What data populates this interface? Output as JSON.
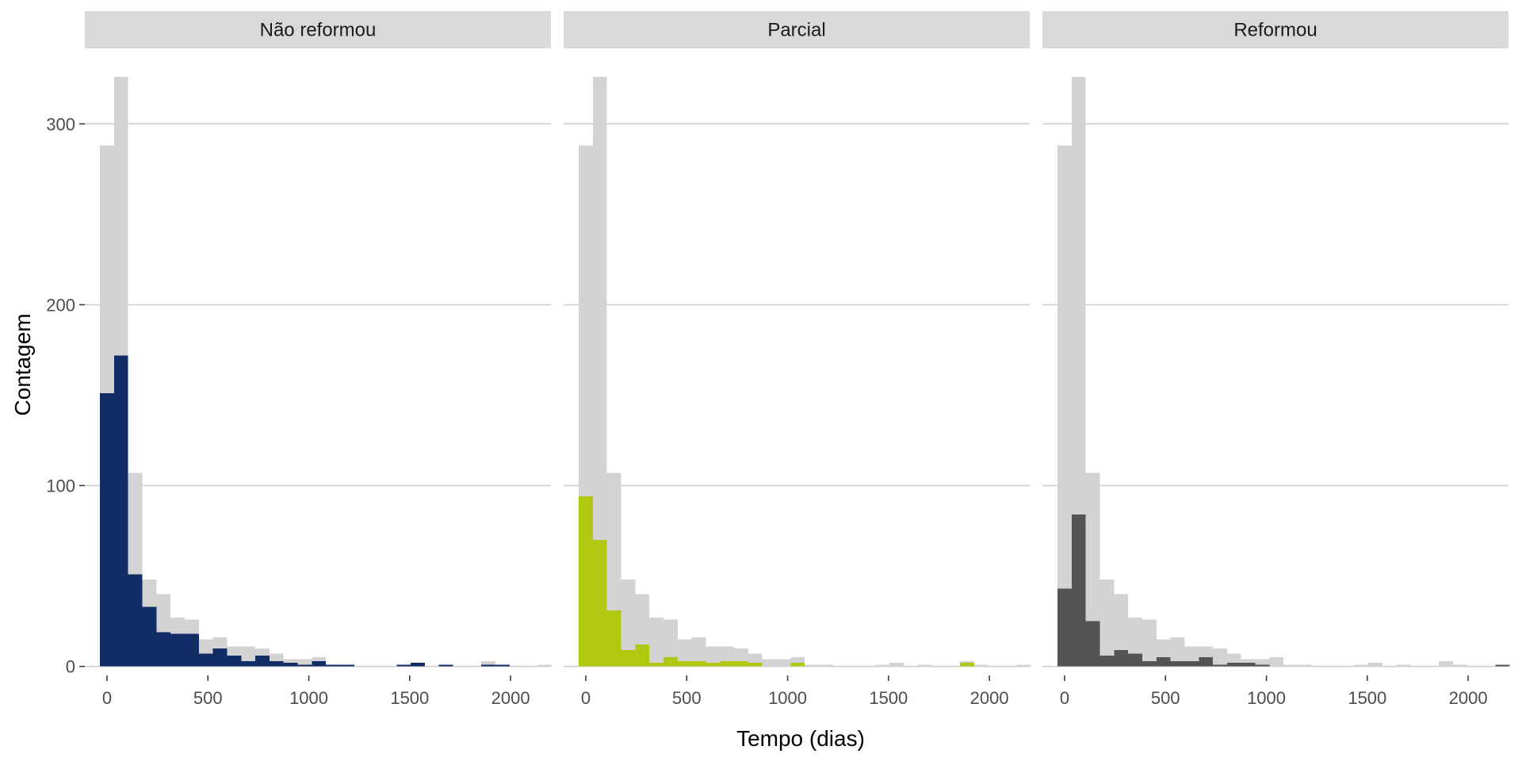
{
  "chart_data": {
    "type": "bar",
    "xlabel": "Tempo (dias)",
    "ylabel": "Contagem",
    "xlim": [
      -110,
      2200
    ],
    "ylim": [
      -5,
      326
    ],
    "xticks": [
      0,
      500,
      1000,
      1500,
      2000
    ],
    "yticks": [
      0,
      100,
      200,
      300
    ],
    "grid": "horizontal",
    "bin_width": 70,
    "bin_start": -35,
    "total_series": {
      "color": "#d3d3d3",
      "values": [
        288,
        326,
        107,
        48,
        40,
        27,
        26,
        15,
        16,
        11,
        11,
        10,
        7,
        4,
        4,
        5,
        1,
        1,
        0,
        0,
        0,
        1,
        2,
        0,
        1,
        0,
        0,
        3,
        1,
        0,
        0,
        1
      ]
    },
    "facets": [
      {
        "label": "Não reformou",
        "color": "#112d66",
        "values": [
          151,
          172,
          51,
          33,
          19,
          18,
          18,
          7,
          10,
          6,
          3,
          6,
          3,
          2,
          1,
          3,
          1,
          1,
          0,
          0,
          0,
          1,
          2,
          0,
          1,
          0,
          0,
          1,
          1,
          0,
          0,
          0
        ]
      },
      {
        "label": "Parcial",
        "color": "#b0c80f",
        "values": [
          94,
          70,
          31,
          9,
          12,
          2,
          5,
          3,
          3,
          2,
          3,
          3,
          2,
          0,
          0,
          2,
          0,
          0,
          0,
          0,
          0,
          0,
          0,
          0,
          0,
          0,
          0,
          2,
          0,
          0,
          0,
          0
        ]
      },
      {
        "label": "Reformou",
        "color": "#545454",
        "values": [
          43,
          84,
          25,
          6,
          9,
          7,
          3,
          5,
          3,
          3,
          5,
          1,
          2,
          2,
          1,
          0,
          0,
          0,
          0,
          0,
          0,
          0,
          0,
          0,
          0,
          0,
          0,
          0,
          0,
          0,
          0,
          1
        ]
      }
    ]
  }
}
